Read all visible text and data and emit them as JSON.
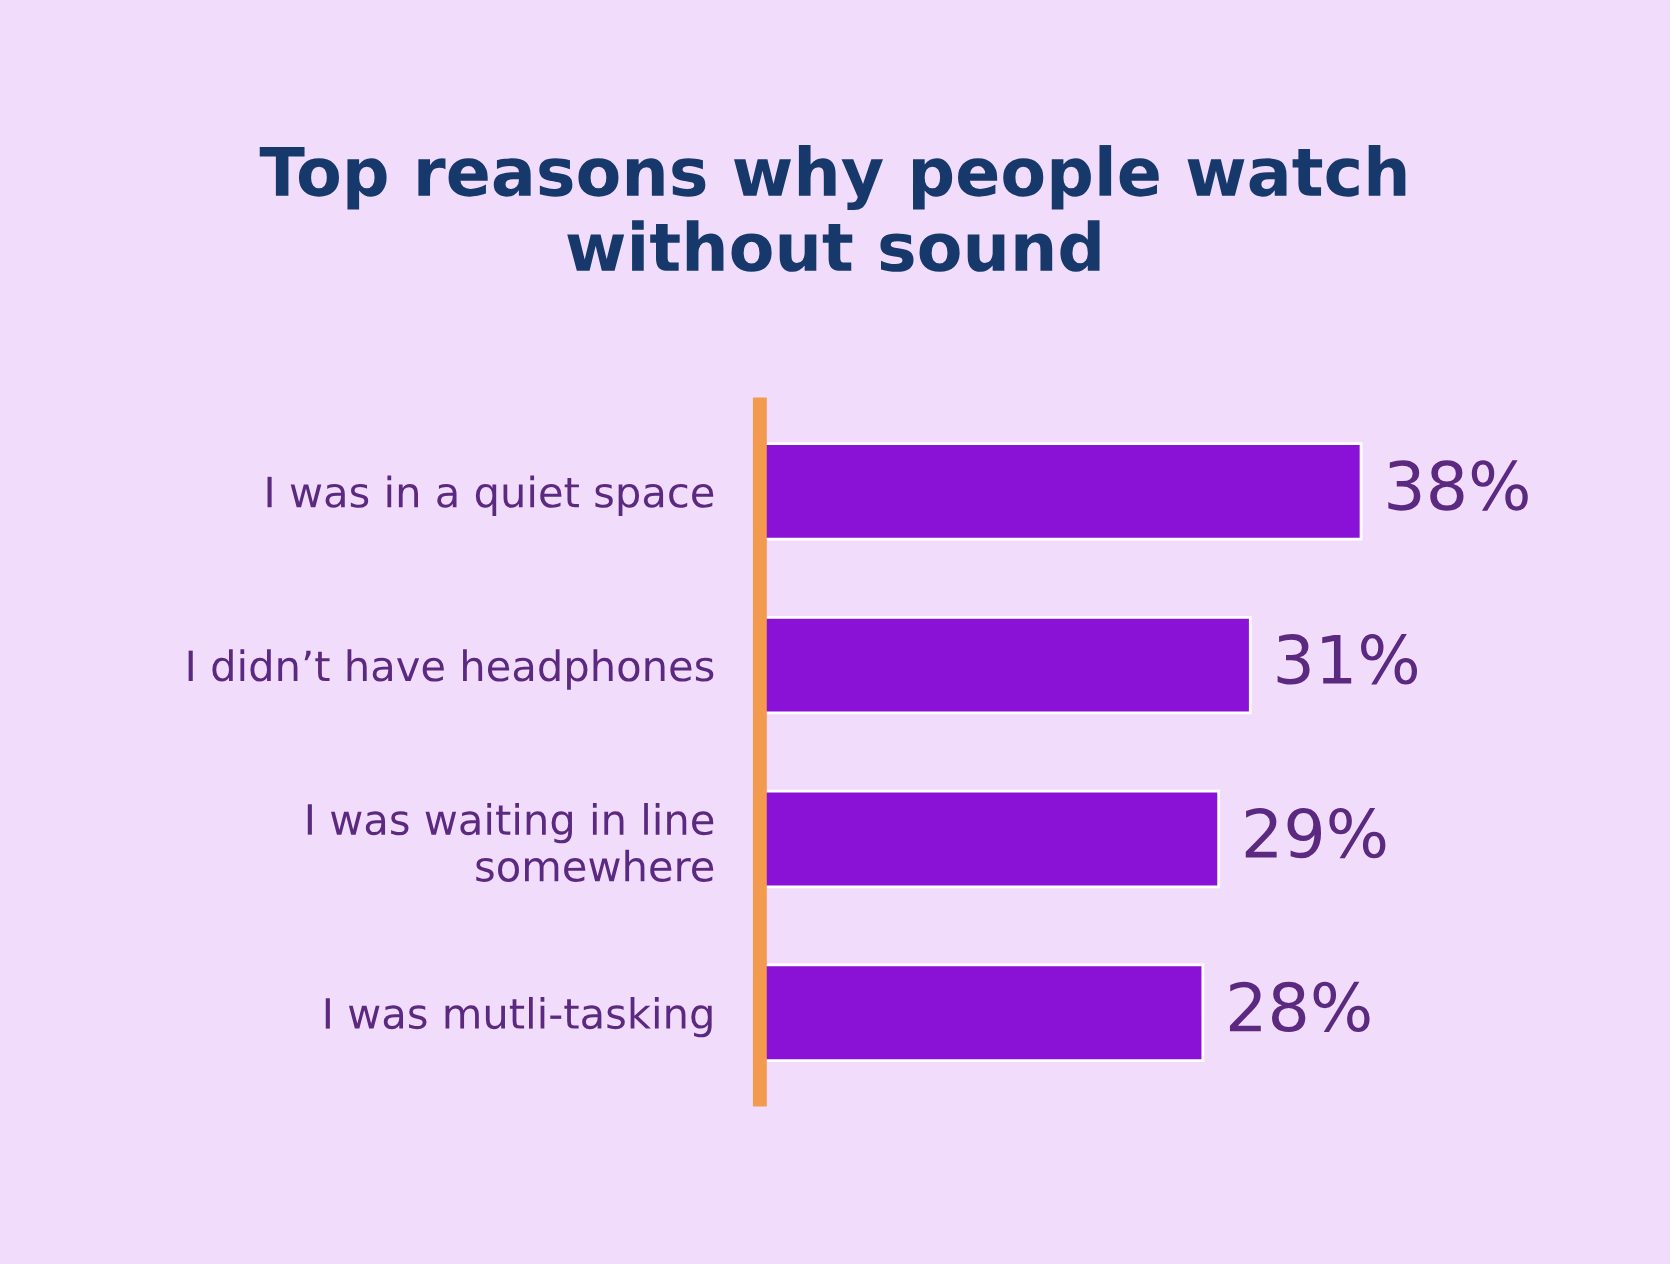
{
  "chart_data": {
    "type": "bar",
    "orientation": "horizontal",
    "title": "Top reasons why people watch\nwithout sound",
    "categories": [
      "I was in a quiet space",
      "I didn’t have headphones",
      "I was waiting in line\nsomewhere",
      "I was mutli-tasking"
    ],
    "values": [
      38,
      31,
      29,
      28
    ],
    "color": "#8a12d6",
    "value_labels": [
      "38%",
      "31%",
      "29%",
      "28%"
    ],
    "grid": false,
    "legend": false
  }
}
